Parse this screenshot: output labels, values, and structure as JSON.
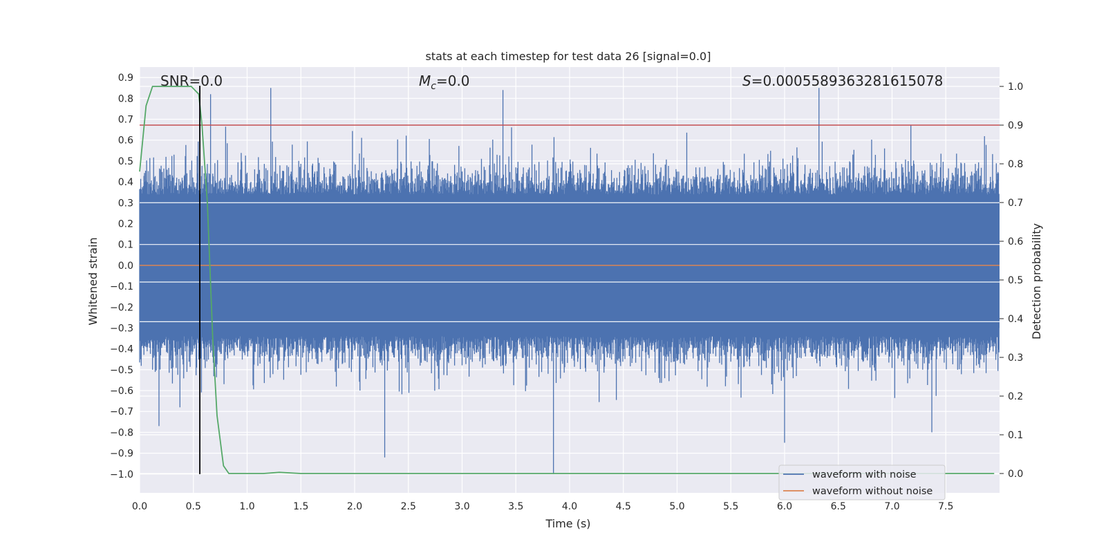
{
  "chart_data": {
    "type": "line",
    "title": "stats at each timestep for test data 26 [signal=0.0]",
    "xlabel": "Time (s)",
    "ylabel": "Whitened strain",
    "y2label": "Detection probability",
    "xlim": [
      0.0,
      8.0
    ],
    "ylim": [
      -1.09,
      0.95
    ],
    "y2lim": [
      -0.05,
      1.05
    ],
    "xticks": [
      "0.0",
      "0.5",
      "1.0",
      "1.5",
      "2.0",
      "2.5",
      "3.0",
      "3.5",
      "4.0",
      "4.5",
      "5.0",
      "5.5",
      "6.0",
      "6.5",
      "7.0",
      "7.5"
    ],
    "xtick_values": [
      0.0,
      0.5,
      1.0,
      1.5,
      2.0,
      2.5,
      3.0,
      3.5,
      4.0,
      4.5,
      5.0,
      5.5,
      6.0,
      6.5,
      7.0,
      7.5
    ],
    "yticks": [
      "0.9",
      "0.8",
      "0.7",
      "0.6",
      "0.5",
      "0.4",
      "0.3",
      "0.2",
      "0.1",
      "0.0",
      "−0.1",
      "−0.2",
      "−0.3",
      "−0.4",
      "−0.5",
      "−0.6",
      "−0.7",
      "−0.8",
      "−0.9",
      "−1.0"
    ],
    "ytick_values": [
      0.9,
      0.8,
      0.7,
      0.6,
      0.5,
      0.4,
      0.3,
      0.2,
      0.1,
      0.0,
      -0.1,
      -0.2,
      -0.3,
      -0.4,
      -0.5,
      -0.6,
      -0.7,
      -0.8,
      -0.9,
      -1.0
    ],
    "y2ticks": [
      "1.0",
      "0.9",
      "0.8",
      "0.7",
      "0.6",
      "0.5",
      "0.4",
      "0.3",
      "0.2",
      "0.1",
      "0.0"
    ],
    "y2tick_values": [
      1.0,
      0.9,
      0.8,
      0.7,
      0.6,
      0.5,
      0.4,
      0.3,
      0.2,
      0.1,
      0.0
    ],
    "annotations": {
      "snr": "SNR=0.0",
      "mc_symbol": "M",
      "mc_sub": "c",
      "mc_value": "=0.0",
      "s_symbol": "S",
      "s_value": "=0.0005589363281615078"
    },
    "series": [
      {
        "name": "waveform with noise",
        "axis": "left",
        "color": "#4c72b0",
        "kind": "noise",
        "duration_s": 8.0,
        "typical_range": [
          -0.3,
          0.3
        ],
        "peaks": [
          {
            "t": 0.56,
            "v": 0.86
          },
          {
            "t": 0.66,
            "v": 0.82
          },
          {
            "t": 1.22,
            "v": 0.85
          },
          {
            "t": 3.38,
            "v": 0.84
          },
          {
            "t": 6.32,
            "v": 0.85
          },
          {
            "t": 3.85,
            "v": -1.0
          },
          {
            "t": 2.28,
            "v": -0.92
          },
          {
            "t": 6.0,
            "v": -0.85
          },
          {
            "t": 7.37,
            "v": -0.8
          },
          {
            "t": 0.18,
            "v": -0.77
          }
        ]
      },
      {
        "name": "waveform without noise",
        "axis": "left",
        "color": "#dd8452",
        "x": [
          0.0,
          8.0
        ],
        "y": [
          0.0,
          0.0
        ]
      },
      {
        "name": "detection probability",
        "axis": "right",
        "color": "#55a868",
        "x": [
          0.0,
          0.06,
          0.12,
          0.2,
          0.3,
          0.4,
          0.48,
          0.55,
          0.58,
          0.63,
          0.68,
          0.72,
          0.78,
          0.83,
          1.0,
          1.15,
          1.3,
          1.5,
          2.0,
          4.0,
          6.0,
          7.95
        ],
        "y": [
          0.78,
          0.95,
          1.0,
          1.0,
          1.0,
          1.0,
          1.0,
          0.98,
          0.9,
          0.7,
          0.35,
          0.15,
          0.02,
          0.0,
          0.0,
          0.0,
          0.003,
          0.0,
          0.0,
          0.0,
          0.0,
          0.0
        ]
      }
    ],
    "threshold_line": {
      "axis": "right",
      "value": 0.9,
      "color": "#c44e52"
    },
    "marker_line": {
      "x": 0.56,
      "y_from": -1.0,
      "y_to": 0.86,
      "color": "#000000"
    },
    "legend": {
      "placement": "lower-right",
      "entries": [
        {
          "label": "waveform with noise",
          "color": "#4c72b0"
        },
        {
          "label": "waveform without noise",
          "color": "#dd8452"
        }
      ]
    },
    "grid": true,
    "background": "#eaeaf2"
  }
}
